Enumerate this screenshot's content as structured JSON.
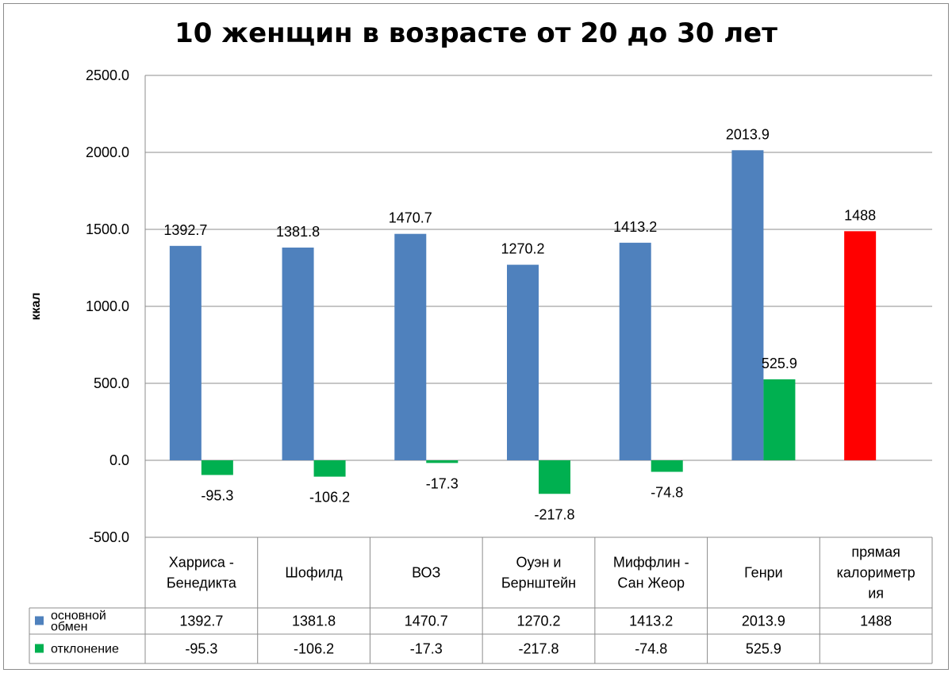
{
  "chart_data": {
    "type": "bar",
    "title": "10 женщин в возрасте от 20 до 30 лет",
    "xlabel": "",
    "ylabel": "ккал",
    "ylim": [
      -500,
      2500
    ],
    "yticks": [
      "2500.0",
      "2000.0",
      "1500.0",
      "1000.0",
      "500.0",
      "0.0",
      "-500.0"
    ],
    "y_tick_values": [
      2500,
      2000,
      1500,
      1000,
      500,
      0,
      -500
    ],
    "grid": true,
    "legend_placement": "data-table",
    "categories": [
      [
        "Харриса -",
        "Бенедикта"
      ],
      [
        "Шофилд"
      ],
      [
        "ВОЗ"
      ],
      [
        "Оуэн и",
        "Бернштейн"
      ],
      [
        "Миффлин -",
        "Сан Жеор"
      ],
      [
        "Генри"
      ],
      [
        "прямая",
        "калориметр",
        "ия"
      ]
    ],
    "series": [
      {
        "name_lines": [
          "основной",
          "обмен"
        ],
        "color": "#4f81bd",
        "values": [
          1392.7,
          1381.8,
          1470.7,
          1270.2,
          1413.2,
          2013.9,
          1488
        ],
        "labels": [
          "1392.7",
          "1381.8",
          "1470.7",
          "1270.2",
          "1413.2",
          "2013.9",
          "1488"
        ],
        "colors": [
          "#4f81bd",
          "#4f81bd",
          "#4f81bd",
          "#4f81bd",
          "#4f81bd",
          "#4f81bd",
          "#ff0000"
        ]
      },
      {
        "name_lines": [
          "отклонение"
        ],
        "color": "#00b050",
        "values": [
          -95.3,
          -106.2,
          -17.3,
          -217.8,
          -74.8,
          525.9,
          null
        ],
        "labels": [
          "-95.3",
          "-106.2",
          "-17.3",
          "-217.8",
          "-74.8",
          "525.9",
          ""
        ],
        "colors": [
          "#00b050",
          "#00b050",
          "#00b050",
          "#00b050",
          "#00b050",
          "#00b050",
          "#00b050"
        ]
      }
    ]
  }
}
